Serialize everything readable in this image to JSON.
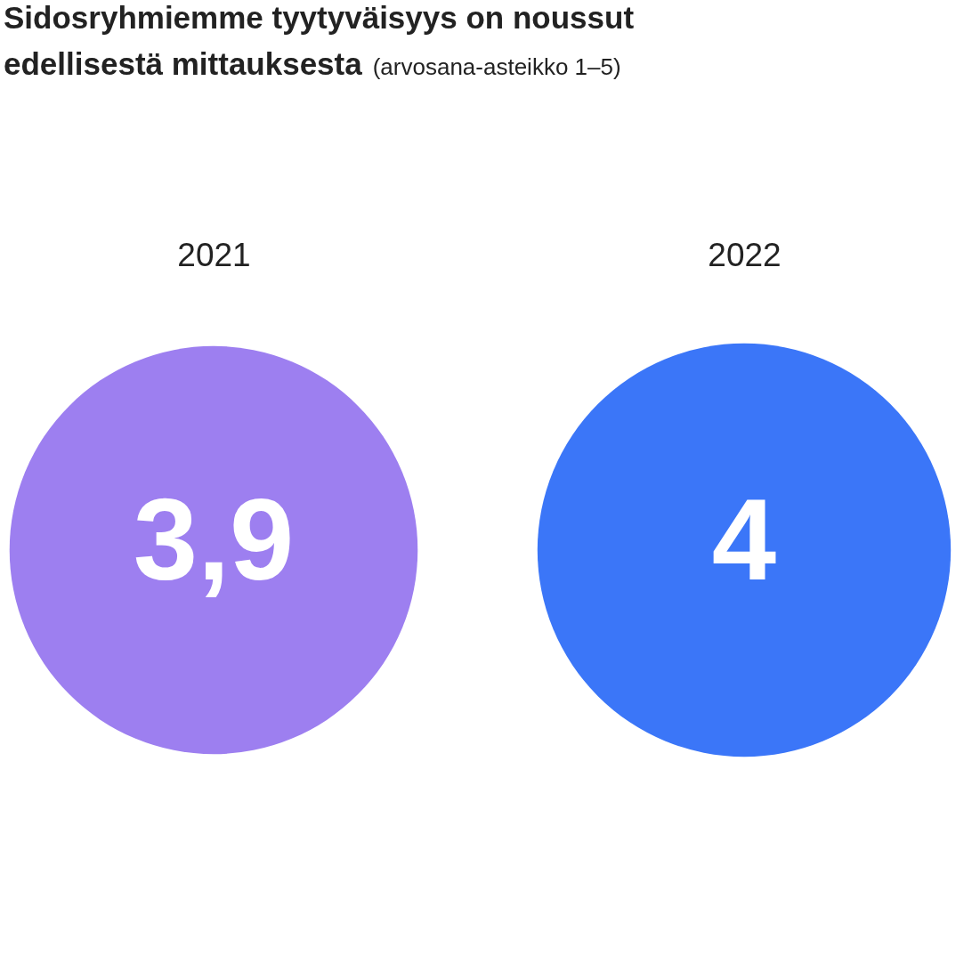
{
  "chart_data": {
    "type": "other",
    "title": "Sidosryhmiemme tyytyväisyys on noussut edellisestä mittauksesta",
    "subtitle": "(arvosana-asteikko 1–5)",
    "categories": [
      "2021",
      "2022"
    ],
    "values": [
      3.9,
      4
    ],
    "colors": [
      "#9d7ff0",
      "#3b76f8"
    ],
    "value_labels": [
      "3,9",
      "4"
    ]
  }
}
